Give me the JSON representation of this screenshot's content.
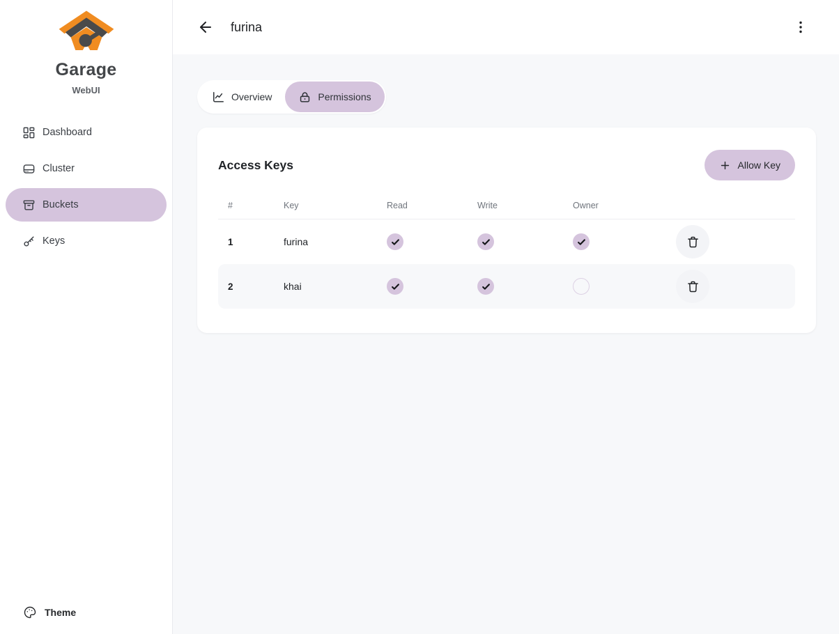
{
  "colors": {
    "accent": "#d5c4dd",
    "page_bg": "#f7f8fa",
    "logo_orange": "#f08c21",
    "logo_dark": "#4a4a4a",
    "row_stripe": "#f7f8fa"
  },
  "sidebar": {
    "brand": {
      "title": "Garage",
      "subtitle": "WebUI",
      "logo_icon": "garage-logo"
    },
    "items": [
      {
        "label": "Dashboard",
        "icon": "dashboard-icon",
        "active": false
      },
      {
        "label": "Cluster",
        "icon": "cluster-icon",
        "active": false
      },
      {
        "label": "Buckets",
        "icon": "buckets-icon",
        "active": true
      },
      {
        "label": "Keys",
        "icon": "keys-icon",
        "active": false
      }
    ],
    "footer": {
      "theme_label": "Theme",
      "icon": "palette-icon"
    }
  },
  "header": {
    "title": "furina",
    "back_icon": "arrow-left-icon",
    "menu_icon": "kebab-menu-icon"
  },
  "tabs": [
    {
      "label": "Overview",
      "icon": "chart-line-icon",
      "active": false
    },
    {
      "label": "Permissions",
      "icon": "lock-icon",
      "active": true
    }
  ],
  "card": {
    "title": "Access Keys",
    "allow_key_button": {
      "label": "Allow Key",
      "icon": "plus-icon"
    },
    "table": {
      "columns": [
        "#",
        "Key",
        "Read",
        "Write",
        "Owner"
      ],
      "rows": [
        {
          "index": "1",
          "key": "furina",
          "read": true,
          "write": true,
          "owner": true
        },
        {
          "index": "2",
          "key": "khai",
          "read": true,
          "write": true,
          "owner": false
        }
      ]
    }
  }
}
